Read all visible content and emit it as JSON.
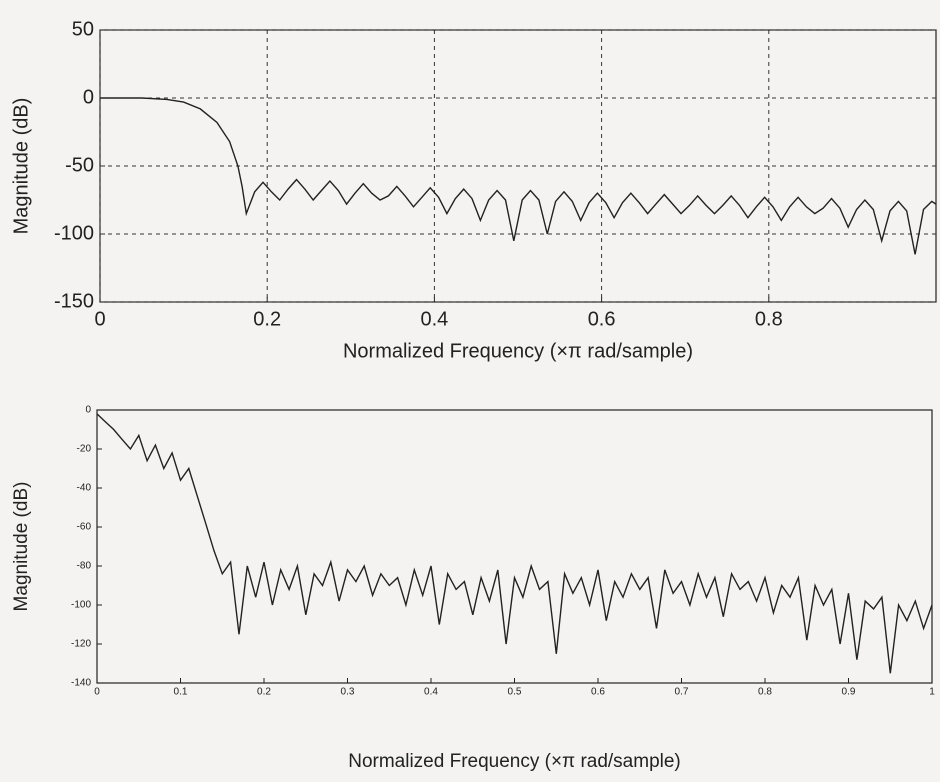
{
  "chart_data": [
    {
      "type": "line",
      "xlabel": "Normalized Frequency  (×π rad/sample)",
      "ylabel": "Magnitude (dB)",
      "xlim": [
        0,
        1
      ],
      "ylim": [
        -150,
        50
      ],
      "xticks": [
        0,
        0.2,
        0.4,
        0.6,
        0.8
      ],
      "yticks": [
        50,
        0,
        -50,
        -100,
        -150
      ],
      "grid": true,
      "color": "#222",
      "x": [
        0,
        0.05,
        0.08,
        0.1,
        0.12,
        0.14,
        0.155,
        0.165,
        0.17,
        0.175,
        0.185,
        0.195,
        0.205,
        0.215,
        0.225,
        0.235,
        0.245,
        0.255,
        0.265,
        0.275,
        0.285,
        0.295,
        0.305,
        0.315,
        0.325,
        0.335,
        0.345,
        0.355,
        0.365,
        0.375,
        0.385,
        0.395,
        0.405,
        0.415,
        0.425,
        0.435,
        0.445,
        0.455,
        0.465,
        0.475,
        0.485,
        0.495,
        0.505,
        0.515,
        0.525,
        0.535,
        0.545,
        0.555,
        0.565,
        0.575,
        0.585,
        0.595,
        0.605,
        0.615,
        0.625,
        0.635,
        0.645,
        0.655,
        0.665,
        0.675,
        0.685,
        0.695,
        0.705,
        0.715,
        0.725,
        0.735,
        0.745,
        0.755,
        0.765,
        0.775,
        0.785,
        0.795,
        0.805,
        0.815,
        0.825,
        0.835,
        0.845,
        0.855,
        0.865,
        0.875,
        0.885,
        0.895,
        0.905,
        0.915,
        0.925,
        0.935,
        0.945,
        0.955,
        0.965,
        0.975,
        0.985,
        0.995,
        1.0
      ],
      "values": [
        0,
        0,
        -1,
        -3,
        -8,
        -18,
        -32,
        -50,
        -65,
        -85,
        -69,
        -62,
        -69,
        -75,
        -67,
        -60,
        -67,
        -75,
        -68,
        -61,
        -68,
        -78,
        -70,
        -63,
        -70,
        -75,
        -72,
        -65,
        -72,
        -80,
        -73,
        -66,
        -73,
        -85,
        -74,
        -67,
        -74,
        -90,
        -75,
        -68,
        -75,
        -105,
        -75,
        -68,
        -75,
        -100,
        -76,
        -69,
        -76,
        -90,
        -77,
        -70,
        -77,
        -88,
        -77,
        -70,
        -77,
        -85,
        -78,
        -71,
        -78,
        -85,
        -79,
        -72,
        -79,
        -85,
        -79,
        -72,
        -79,
        -88,
        -80,
        -73,
        -80,
        -90,
        -80,
        -73,
        -80,
        -85,
        -81,
        -74,
        -81,
        -95,
        -82,
        -75,
        -82,
        -105,
        -83,
        -76,
        -83,
        -115,
        -82,
        -76,
        -78
      ]
    },
    {
      "type": "line",
      "xlabel": "Normalized Frequency  (×π rad/sample)",
      "ylabel": "Magnitude (dB)",
      "xlim": [
        0,
        1
      ],
      "ylim": [
        -140,
        0
      ],
      "xticks": [
        0,
        0.1,
        0.2,
        0.3,
        0.4,
        0.5,
        0.6,
        0.7,
        0.8,
        0.9,
        1
      ],
      "yticks": [
        0,
        -20,
        -40,
        -60,
        -80,
        -100,
        -120,
        -140
      ],
      "grid": false,
      "color": "#222",
      "x": [
        0,
        0.01,
        0.02,
        0.03,
        0.04,
        0.05,
        0.06,
        0.07,
        0.08,
        0.09,
        0.1,
        0.11,
        0.12,
        0.13,
        0.14,
        0.15,
        0.16,
        0.17,
        0.18,
        0.19,
        0.2,
        0.21,
        0.22,
        0.23,
        0.24,
        0.25,
        0.26,
        0.27,
        0.28,
        0.29,
        0.3,
        0.31,
        0.32,
        0.33,
        0.34,
        0.35,
        0.36,
        0.37,
        0.38,
        0.39,
        0.4,
        0.41,
        0.42,
        0.43,
        0.44,
        0.45,
        0.46,
        0.47,
        0.48,
        0.49,
        0.5,
        0.51,
        0.52,
        0.53,
        0.54,
        0.55,
        0.56,
        0.57,
        0.58,
        0.59,
        0.6,
        0.61,
        0.62,
        0.63,
        0.64,
        0.65,
        0.66,
        0.67,
        0.68,
        0.69,
        0.7,
        0.71,
        0.72,
        0.73,
        0.74,
        0.75,
        0.76,
        0.77,
        0.78,
        0.79,
        0.8,
        0.81,
        0.82,
        0.83,
        0.84,
        0.85,
        0.86,
        0.87,
        0.88,
        0.89,
        0.9,
        0.91,
        0.92,
        0.93,
        0.94,
        0.95,
        0.96,
        0.97,
        0.98,
        0.99,
        1
      ],
      "values": [
        -2,
        -6,
        -10,
        -15,
        -20,
        -13,
        -26,
        -18,
        -30,
        -22,
        -36,
        -30,
        -44,
        -58,
        -72,
        -84,
        -78,
        -115,
        -80,
        -96,
        -78,
        -100,
        -82,
        -92,
        -80,
        -105,
        -84,
        -90,
        -78,
        -98,
        -82,
        -88,
        -80,
        -95,
        -84,
        -90,
        -86,
        -100,
        -82,
        -95,
        -80,
        -110,
        -84,
        -92,
        -88,
        -105,
        -86,
        -98,
        -82,
        -120,
        -86,
        -96,
        -80,
        -92,
        -88,
        -125,
        -84,
        -94,
        -86,
        -100,
        -82,
        -108,
        -88,
        -96,
        -84,
        -92,
        -86,
        -112,
        -82,
        -94,
        -88,
        -100,
        -84,
        -96,
        -86,
        -106,
        -84,
        -92,
        -88,
        -98,
        -86,
        -104,
        -90,
        -96,
        -86,
        -118,
        -90,
        -100,
        -92,
        -120,
        -94,
        -128,
        -98,
        -102,
        -96,
        -135,
        -100,
        -108,
        -98,
        -112,
        -100
      ]
    }
  ]
}
